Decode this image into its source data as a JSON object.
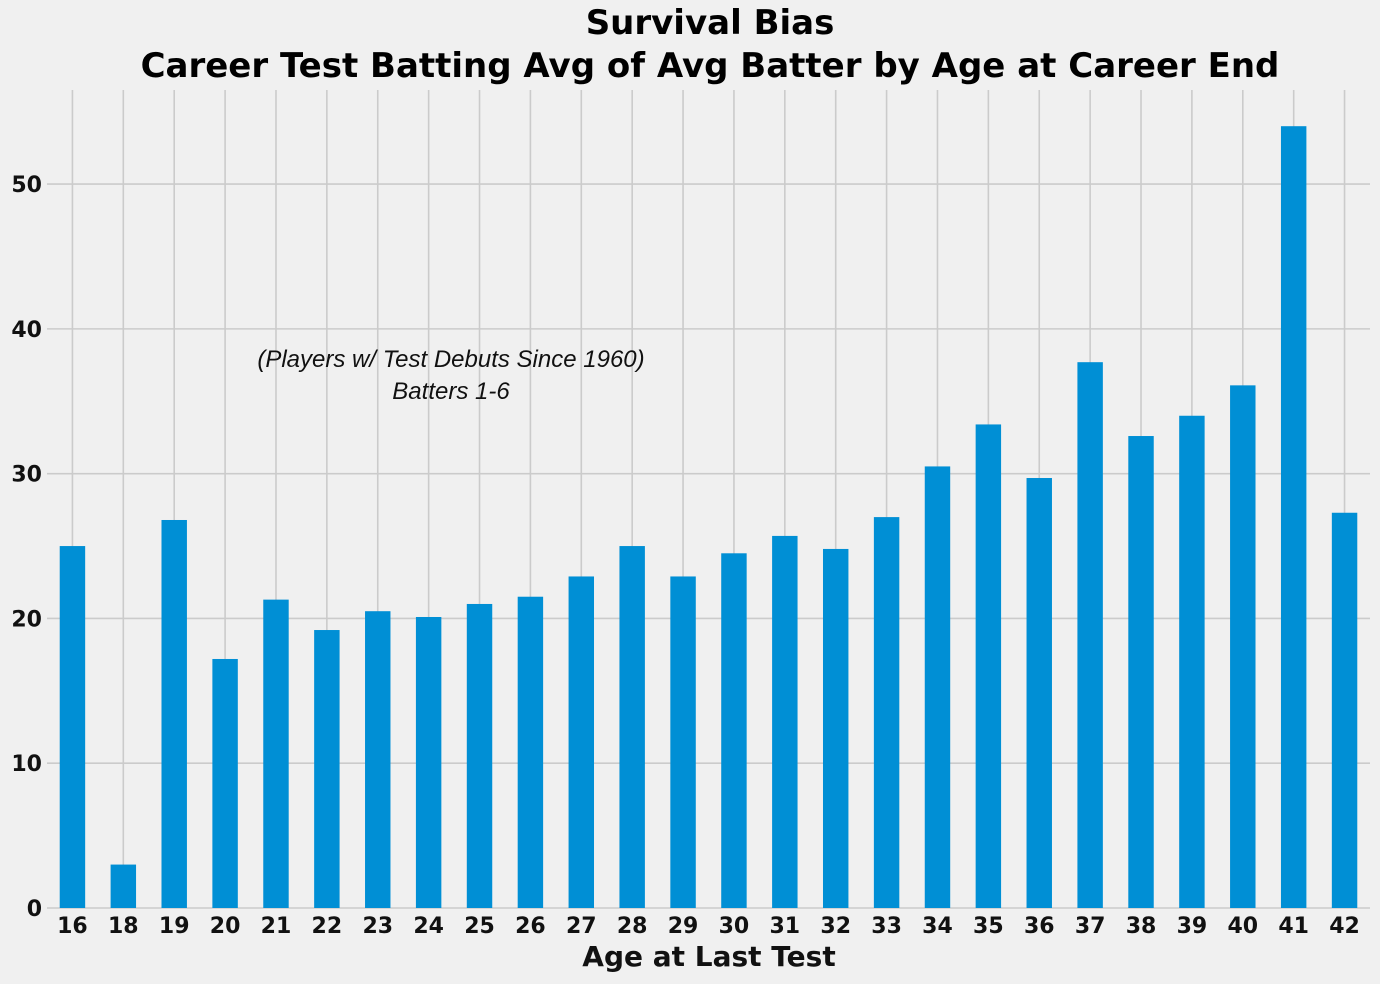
{
  "chart_data": {
    "type": "bar",
    "title_lines": [
      "Survival Bias",
      "Career Test Batting Avg of Avg Batter by Age at Career End"
    ],
    "xlabel": "Age at Last Test",
    "ylabel": "",
    "categories": [
      "16",
      "18",
      "19",
      "20",
      "21",
      "22",
      "23",
      "24",
      "25",
      "26",
      "27",
      "28",
      "29",
      "30",
      "31",
      "32",
      "33",
      "34",
      "35",
      "36",
      "37",
      "38",
      "39",
      "40",
      "41",
      "42"
    ],
    "values": [
      25.0,
      3.0,
      26.8,
      17.2,
      21.3,
      19.2,
      20.5,
      20.1,
      21.0,
      21.5,
      22.9,
      25.0,
      22.9,
      24.5,
      25.7,
      24.8,
      27.0,
      30.5,
      33.4,
      29.7,
      37.7,
      32.6,
      34.0,
      36.1,
      54.0,
      27.3
    ],
    "ylim": [
      0,
      56.5
    ],
    "yticks": [
      0,
      10,
      20,
      30,
      40,
      50
    ],
    "grid": true,
    "bar_color": "#008fd5",
    "background_color": "#f0f0f0",
    "grid_color": "#cbcbcb",
    "annotation": {
      "lines": [
        "(Players w/ Test Debuts Since 1960)",
        "Batters 1-6"
      ]
    }
  }
}
